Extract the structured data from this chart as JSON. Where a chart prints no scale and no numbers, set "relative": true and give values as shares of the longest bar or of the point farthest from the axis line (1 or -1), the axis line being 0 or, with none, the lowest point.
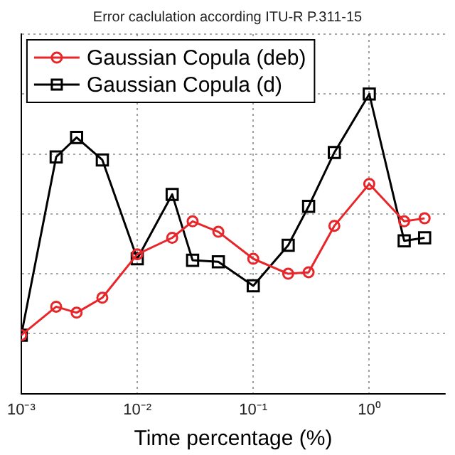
{
  "chart_data": {
    "type": "line",
    "title": "Error caclulation according ITU-R P.311-15",
    "xlabel": "Time percentage (%)",
    "relative": true,
    "log": "x",
    "xlim": [
      0.001,
      4.5
    ],
    "xticks": [
      {
        "value": 0.001,
        "label": "10⁻³"
      },
      {
        "value": 0.01,
        "label": "10⁻²"
      },
      {
        "value": 0.1,
        "label": "10⁻¹"
      },
      {
        "value": 1,
        "label": "10⁰"
      }
    ],
    "x": [
      0.001,
      0.002,
      0.003,
      0.005,
      0.01,
      0.02,
      0.03,
      0.05,
      0.1,
      0.2,
      0.3,
      0.5,
      1,
      2,
      3
    ],
    "series": [
      {
        "name": "Gaussian Copula (deb)",
        "color": "#e8262a",
        "marker": "circle",
        "values": [
          0.195,
          0.29,
          0.27,
          0.32,
          0.465,
          0.52,
          0.575,
          0.54,
          0.45,
          0.4,
          0.405,
          0.56,
          0.7,
          0.575,
          0.585
        ]
      },
      {
        "name": "Gaussian Copula (d)",
        "color": "#000000",
        "marker": "square",
        "values": [
          0.195,
          0.79,
          0.855,
          0.78,
          0.45,
          0.665,
          0.445,
          0.44,
          0.36,
          0.495,
          0.625,
          0.805,
          1,
          0.51,
          0.52
        ]
      }
    ],
    "grid": true,
    "legend": "top left",
    "tick_labels": "x"
  }
}
